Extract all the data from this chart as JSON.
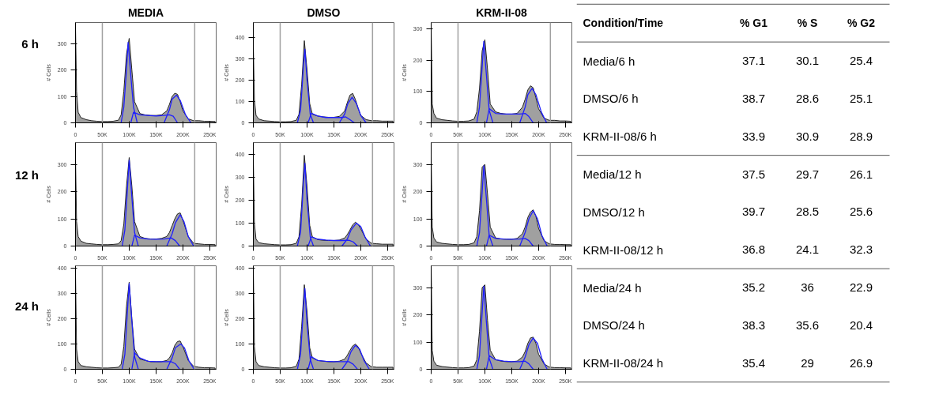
{
  "chart_data": [
    {
      "type": "area",
      "title": "MEDIA",
      "ylabel": "# Cells",
      "annotations": [
        "6 h"
      ],
      "xlim": [
        0,
        262000
      ],
      "ylim": [
        0,
        380
      ],
      "xticks": [
        0,
        {
          "value": 50000,
          "label": "50K"
        },
        {
          "value": 100000,
          "label": "100K"
        },
        {
          "value": 150000,
          "label": "150K"
        },
        {
          "value": 200000,
          "label": "200K"
        },
        {
          "value": 250000,
          "label": "250K"
        }
      ],
      "yticks": [
        0,
        100,
        200,
        300
      ],
      "x": [
        0,
        2000,
        5000,
        10000,
        20000,
        30000,
        40000,
        50000,
        60000,
        70000,
        80000,
        85000,
        90000,
        95000,
        100000,
        105000,
        110000,
        120000,
        130000,
        140000,
        150000,
        160000,
        170000,
        175000,
        180000,
        185000,
        190000,
        195000,
        200000,
        210000,
        220000,
        230000,
        240000,
        250000,
        260000
      ],
      "ref_lines": [
        {
          "axis": "x",
          "value": 50000,
          "color": "#a0a0a0"
        },
        {
          "axis": "x",
          "value": 222000,
          "color": "#a0a0a0"
        }
      ],
      "series": [
        {
          "color": "#a0a0a0",
          "values": [
            370,
            120,
            40,
            20,
            12,
            8,
            6,
            5,
            5,
            6,
            10,
            30,
            120,
            260,
            320,
            200,
            80,
            35,
            30,
            28,
            28,
            30,
            45,
            70,
            100,
            112,
            108,
            80,
            45,
            15,
            8,
            8,
            6,
            6,
            5
          ]
        },
        {
          "type": "line",
          "color": "#1f1fff",
          "x": [
            85000,
            90000,
            95000,
            98000,
            103000,
            108000,
            115000
          ],
          "values": [
            0,
            60,
            200,
            305,
            180,
            60,
            0
          ]
        },
        {
          "type": "line",
          "color": "#1f1fff",
          "x": [
            103000,
            108000,
            120000,
            135000,
            150000,
            165000,
            175000,
            182000,
            190000
          ],
          "values": [
            0,
            40,
            30,
            28,
            26,
            28,
            30,
            25,
            0
          ]
        },
        {
          "type": "line",
          "color": "#1f1fff",
          "x": [
            165000,
            175000,
            180000,
            188000,
            195000,
            205000,
            215000
          ],
          "values": [
            0,
            50,
            90,
            105,
            85,
            30,
            0
          ]
        }
      ]
    },
    {
      "type": "area",
      "title": "DMSO",
      "ylabel": "# Cells",
      "xlim": [
        0,
        262000
      ],
      "ylim": [
        0,
        470
      ],
      "xticks": [
        0,
        {
          "value": 50000,
          "label": "50K"
        },
        {
          "value": 100000,
          "label": "100K"
        },
        {
          "value": 150000,
          "label": "150K"
        },
        {
          "value": 200000,
          "label": "200K"
        },
        {
          "value": 250000,
          "label": "250K"
        }
      ],
      "yticks": [
        0,
        100,
        200,
        300,
        400
      ],
      "x": [
        0,
        2000,
        5000,
        10000,
        20000,
        30000,
        40000,
        50000,
        60000,
        70000,
        80000,
        85000,
        90000,
        95000,
        100000,
        105000,
        110000,
        120000,
        130000,
        140000,
        150000,
        160000,
        170000,
        175000,
        180000,
        185000,
        190000,
        195000,
        200000,
        210000,
        220000,
        230000,
        240000,
        250000,
        260000
      ],
      "ref_lines": [
        {
          "axis": "x",
          "value": 50000,
          "color": "#a0a0a0"
        },
        {
          "axis": "x",
          "value": 222000,
          "color": "#a0a0a0"
        }
      ],
      "series": [
        {
          "color": "#a0a0a0",
          "values": [
            360,
            110,
            35,
            18,
            10,
            8,
            6,
            5,
            5,
            6,
            12,
            40,
            180,
            385,
            250,
            90,
            40,
            32,
            28,
            26,
            26,
            30,
            55,
            95,
            130,
            138,
            110,
            70,
            35,
            15,
            10,
            10,
            8,
            8,
            8
          ]
        },
        {
          "type": "line",
          "color": "#1f1fff",
          "x": [
            82000,
            88000,
            93000,
            96000,
            100000,
            106000,
            112000
          ],
          "values": [
            0,
            60,
            250,
            345,
            200,
            40,
            0
          ]
        },
        {
          "type": "line",
          "color": "#1f1fff",
          "x": [
            102000,
            108000,
            120000,
            135000,
            150000,
            165000,
            172000,
            180000,
            188000
          ],
          "values": [
            0,
            45,
            32,
            25,
            25,
            25,
            28,
            15,
            0
          ]
        },
        {
          "type": "line",
          "color": "#1f1fff",
          "x": [
            160000,
            170000,
            176000,
            184000,
            192000,
            200000,
            210000
          ],
          "values": [
            0,
            40,
            90,
            120,
            90,
            35,
            0
          ]
        }
      ]
    },
    {
      "type": "area",
      "title": "KRM-II-08",
      "ylabel": "# Cells",
      "xlim": [
        0,
        262000
      ],
      "ylim": [
        0,
        320
      ],
      "xticks": [
        0,
        {
          "value": 50000,
          "label": "50K"
        },
        {
          "value": 100000,
          "label": "100K"
        },
        {
          "value": 150000,
          "label": "150K"
        },
        {
          "value": 200000,
          "label": "200K"
        },
        {
          "value": 250000,
          "label": "250K"
        }
      ],
      "yticks": [
        0,
        100,
        200,
        300
      ],
      "x": [
        0,
        2000,
        5000,
        10000,
        20000,
        30000,
        40000,
        50000,
        60000,
        70000,
        80000,
        85000,
        90000,
        95000,
        100000,
        105000,
        110000,
        120000,
        130000,
        140000,
        150000,
        160000,
        170000,
        175000,
        180000,
        185000,
        190000,
        195000,
        200000,
        210000,
        220000,
        230000,
        240000,
        250000,
        260000
      ],
      "ref_lines": [
        {
          "axis": "x",
          "value": 50000,
          "color": "#a0a0a0"
        },
        {
          "axis": "x",
          "value": 222000,
          "color": "#a0a0a0"
        }
      ],
      "series": [
        {
          "color": "#a0a0a0",
          "values": [
            300,
            60,
            30,
            15,
            10,
            8,
            6,
            5,
            5,
            6,
            12,
            35,
            110,
            230,
            265,
            170,
            60,
            35,
            30,
            28,
            28,
            30,
            50,
            75,
            105,
            118,
            112,
            80,
            45,
            15,
            8,
            8,
            6,
            6,
            5
          ]
        },
        {
          "type": "line",
          "color": "#1f1fff",
          "x": [
            85000,
            90000,
            95000,
            98000,
            103000,
            108000,
            115000
          ],
          "values": [
            0,
            50,
            180,
            260,
            150,
            40,
            0
          ]
        },
        {
          "type": "line",
          "color": "#1f1fff",
          "x": [
            103000,
            108000,
            120000,
            135000,
            150000,
            165000,
            175000,
            182000,
            190000
          ],
          "values": [
            0,
            45,
            30,
            28,
            28,
            28,
            30,
            20,
            0
          ]
        },
        {
          "type": "line",
          "color": "#1f1fff",
          "x": [
            165000,
            175000,
            180000,
            188000,
            195000,
            205000,
            215000
          ],
          "values": [
            0,
            50,
            90,
            110,
            90,
            35,
            0
          ]
        }
      ]
    },
    {
      "type": "area",
      "ylabel": "# Cells",
      "annotations": [
        "12 h"
      ],
      "xlim": [
        0,
        262000
      ],
      "ylim": [
        0,
        380
      ],
      "xticks": [
        0,
        {
          "value": 50000,
          "label": "50K"
        },
        {
          "value": 100000,
          "label": "100K"
        },
        {
          "value": 150000,
          "label": "150K"
        },
        {
          "value": 200000,
          "label": "200K"
        },
        {
          "value": 250000,
          "label": "250K"
        }
      ],
      "yticks": [
        0,
        100,
        200,
        300
      ],
      "x": [
        0,
        2000,
        5000,
        10000,
        20000,
        30000,
        40000,
        50000,
        60000,
        70000,
        80000,
        85000,
        90000,
        95000,
        100000,
        105000,
        110000,
        120000,
        130000,
        140000,
        150000,
        160000,
        170000,
        175000,
        180000,
        185000,
        190000,
        195000,
        200000,
        210000,
        220000,
        230000,
        240000,
        250000,
        260000
      ],
      "ref_lines": [
        {
          "axis": "x",
          "value": 50000,
          "color": "#a0a0a0"
        },
        {
          "axis": "x",
          "value": 222000,
          "color": "#a0a0a0"
        }
      ],
      "series": [
        {
          "color": "#a0a0a0",
          "values": [
            330,
            90,
            35,
            18,
            10,
            8,
            6,
            5,
            5,
            6,
            8,
            20,
            80,
            220,
            325,
            220,
            90,
            35,
            28,
            26,
            26,
            28,
            35,
            50,
            75,
            100,
            118,
            122,
            95,
            35,
            10,
            8,
            6,
            6,
            5
          ]
        },
        {
          "type": "line",
          "color": "#1f1fff",
          "x": [
            87000,
            92000,
            97000,
            100000,
            105000,
            110000,
            117000
          ],
          "values": [
            0,
            60,
            220,
            315,
            180,
            50,
            0
          ]
        },
        {
          "type": "line",
          "color": "#1f1fff",
          "x": [
            105000,
            110000,
            120000,
            135000,
            150000,
            165000,
            178000,
            186000,
            194000
          ],
          "values": [
            0,
            40,
            30,
            26,
            25,
            26,
            30,
            20,
            0
          ]
        },
        {
          "type": "line",
          "color": "#1f1fff",
          "x": [
            170000,
            180000,
            186000,
            195000,
            202000,
            210000,
            220000
          ],
          "values": [
            0,
            45,
            85,
            115,
            90,
            35,
            0
          ]
        }
      ]
    },
    {
      "type": "area",
      "ylabel": "# Cells",
      "xlim": [
        0,
        262000
      ],
      "ylim": [
        0,
        450
      ],
      "xticks": [
        0,
        {
          "value": 50000,
          "label": "50K"
        },
        {
          "value": 100000,
          "label": "100K"
        },
        {
          "value": 150000,
          "label": "150K"
        },
        {
          "value": 200000,
          "label": "200K"
        },
        {
          "value": 250000,
          "label": "250K"
        }
      ],
      "yticks": [
        0,
        100,
        200,
        300,
        400
      ],
      "x": [
        0,
        2000,
        5000,
        10000,
        20000,
        30000,
        40000,
        50000,
        60000,
        70000,
        80000,
        85000,
        90000,
        95000,
        100000,
        105000,
        110000,
        120000,
        130000,
        140000,
        150000,
        160000,
        170000,
        175000,
        180000,
        185000,
        190000,
        195000,
        200000,
        210000,
        220000,
        230000,
        240000,
        250000,
        260000
      ],
      "ref_lines": [
        {
          "axis": "x",
          "value": 50000,
          "color": "#a0a0a0"
        },
        {
          "axis": "x",
          "value": 222000,
          "color": "#a0a0a0"
        }
      ],
      "series": [
        {
          "color": "#a0a0a0",
          "values": [
            380,
            100,
            30,
            15,
            10,
            8,
            6,
            5,
            5,
            6,
            12,
            40,
            180,
            395,
            260,
            90,
            40,
            28,
            25,
            24,
            24,
            26,
            35,
            50,
            70,
            92,
            104,
            95,
            75,
            30,
            12,
            10,
            8,
            8,
            8
          ]
        },
        {
          "type": "line",
          "color": "#1f1fff",
          "x": [
            82000,
            88000,
            93000,
            96000,
            100000,
            106000,
            112000
          ],
          "values": [
            0,
            60,
            260,
            360,
            200,
            40,
            0
          ]
        },
        {
          "type": "line",
          "color": "#1f1fff",
          "x": [
            102000,
            108000,
            120000,
            135000,
            150000,
            165000,
            178000,
            186000,
            194000
          ],
          "values": [
            0,
            40,
            30,
            26,
            24,
            24,
            25,
            18,
            0
          ]
        },
        {
          "type": "line",
          "color": "#1f1fff",
          "x": [
            165000,
            175000,
            182000,
            192000,
            200000,
            208000,
            218000
          ],
          "values": [
            0,
            30,
            70,
            100,
            85,
            40,
            0
          ]
        }
      ]
    },
    {
      "type": "area",
      "ylabel": "# Cells",
      "xlim": [
        0,
        262000
      ],
      "ylim": [
        0,
        380
      ],
      "xticks": [
        0,
        {
          "value": 50000,
          "label": "50K"
        },
        {
          "value": 100000,
          "label": "100K"
        },
        {
          "value": 150000,
          "label": "150K"
        },
        {
          "value": 200000,
          "label": "200K"
        },
        {
          "value": 250000,
          "label": "250K"
        }
      ],
      "yticks": [
        0,
        100,
        200,
        300
      ],
      "x": [
        0,
        2000,
        5000,
        10000,
        20000,
        30000,
        40000,
        50000,
        60000,
        70000,
        80000,
        85000,
        90000,
        95000,
        100000,
        105000,
        110000,
        120000,
        130000,
        140000,
        150000,
        160000,
        170000,
        175000,
        180000,
        185000,
        190000,
        195000,
        200000,
        210000,
        220000,
        230000,
        240000,
        250000,
        260000
      ],
      "ref_lines": [
        {
          "axis": "x",
          "value": 50000,
          "color": "#a0a0a0"
        },
        {
          "axis": "x",
          "value": 222000,
          "color": "#a0a0a0"
        }
      ],
      "series": [
        {
          "color": "#a0a0a0",
          "values": [
            330,
            70,
            30,
            15,
            10,
            8,
            6,
            5,
            5,
            6,
            12,
            35,
            130,
            290,
            300,
            190,
            70,
            30,
            26,
            25,
            25,
            28,
            45,
            70,
            105,
            125,
            133,
            110,
            65,
            20,
            8,
            6,
            6,
            5,
            5
          ]
        },
        {
          "type": "line",
          "color": "#1f1fff",
          "x": [
            85000,
            90000,
            95000,
            98000,
            103000,
            108000,
            115000
          ],
          "values": [
            0,
            50,
            200,
            295,
            170,
            40,
            0
          ]
        },
        {
          "type": "line",
          "color": "#1f1fff",
          "x": [
            103000,
            108000,
            120000,
            135000,
            150000,
            165000,
            175000,
            182000,
            190000
          ],
          "values": [
            0,
            40,
            28,
            26,
            25,
            26,
            28,
            20,
            0
          ]
        },
        {
          "type": "line",
          "color": "#1f1fff",
          "x": [
            165000,
            175000,
            182000,
            190000,
            198000,
            206000,
            216000
          ],
          "values": [
            0,
            50,
            100,
            130,
            100,
            40,
            0
          ]
        }
      ]
    },
    {
      "type": "area",
      "ylabel": "# Cells",
      "annotations": [
        "24 h"
      ],
      "xlim": [
        0,
        262000
      ],
      "ylim": [
        0,
        410
      ],
      "xticks": [
        0,
        {
          "value": 50000,
          "label": "50K"
        },
        {
          "value": 100000,
          "label": "100K"
        },
        {
          "value": 150000,
          "label": "150K"
        },
        {
          "value": 200000,
          "label": "200K"
        },
        {
          "value": 250000,
          "label": "250K"
        }
      ],
      "yticks": [
        0,
        100,
        200,
        300,
        400
      ],
      "x": [
        0,
        2000,
        5000,
        10000,
        20000,
        30000,
        40000,
        50000,
        60000,
        70000,
        80000,
        85000,
        90000,
        95000,
        100000,
        105000,
        110000,
        120000,
        130000,
        140000,
        150000,
        160000,
        170000,
        175000,
        180000,
        185000,
        190000,
        195000,
        200000,
        210000,
        220000,
        230000,
        240000,
        250000,
        260000
      ],
      "ref_lines": [
        {
          "axis": "x",
          "value": 50000,
          "color": "#a0a0a0"
        },
        {
          "axis": "x",
          "value": 222000,
          "color": "#a0a0a0"
        }
      ],
      "series": [
        {
          "color": "#a0a0a0",
          "values": [
            390,
            80,
            30,
            15,
            10,
            8,
            6,
            5,
            5,
            6,
            8,
            20,
            90,
            250,
            345,
            200,
            80,
            40,
            35,
            30,
            30,
            30,
            35,
            45,
            65,
            95,
            110,
            112,
            90,
            35,
            12,
            8,
            6,
            6,
            5
          ]
        },
        {
          "type": "line",
          "color": "#1f1fff",
          "x": [
            87000,
            92000,
            97000,
            100000,
            105000,
            110000,
            117000
          ],
          "values": [
            0,
            60,
            240,
            340,
            190,
            50,
            0
          ]
        },
        {
          "type": "line",
          "color": "#1f1fff",
          "x": [
            105000,
            110000,
            120000,
            135000,
            150000,
            165000,
            178000,
            186000,
            194000
          ],
          "values": [
            0,
            65,
            45,
            32,
            30,
            30,
            30,
            22,
            0
          ]
        },
        {
          "type": "line",
          "color": "#1f1fff",
          "x": [
            170000,
            180000,
            186000,
            196000,
            203000,
            211000,
            221000
          ],
          "values": [
            0,
            45,
            85,
            100,
            85,
            35,
            0
          ]
        }
      ]
    },
    {
      "type": "area",
      "ylabel": "# Cells",
      "xlim": [
        0,
        262000
      ],
      "ylim": [
        0,
        410
      ],
      "xticks": [
        0,
        {
          "value": 50000,
          "label": "50K"
        },
        {
          "value": 100000,
          "label": "100K"
        },
        {
          "value": 150000,
          "label": "150K"
        },
        {
          "value": 200000,
          "label": "200K"
        },
        {
          "value": 250000,
          "label": "250K"
        }
      ],
      "yticks": [
        0,
        100,
        200,
        300,
        400
      ],
      "x": [
        0,
        2000,
        5000,
        10000,
        20000,
        30000,
        40000,
        50000,
        60000,
        70000,
        80000,
        85000,
        90000,
        95000,
        100000,
        105000,
        110000,
        120000,
        130000,
        140000,
        150000,
        160000,
        170000,
        175000,
        180000,
        185000,
        190000,
        195000,
        200000,
        210000,
        220000,
        230000,
        240000,
        250000,
        260000
      ],
      "ref_lines": [
        {
          "axis": "x",
          "value": 50000,
          "color": "#a0a0a0"
        },
        {
          "axis": "x",
          "value": 222000,
          "color": "#a0a0a0"
        }
      ],
      "series": [
        {
          "color": "#a0a0a0",
          "values": [
            400,
            90,
            30,
            15,
            10,
            8,
            6,
            5,
            5,
            6,
            12,
            40,
            170,
            335,
            230,
            85,
            45,
            35,
            32,
            30,
            30,
            32,
            40,
            55,
            75,
            92,
            100,
            90,
            65,
            25,
            10,
            8,
            8,
            8,
            8
          ]
        },
        {
          "type": "line",
          "color": "#1f1fff",
          "x": [
            82000,
            88000,
            93000,
            96000,
            100000,
            106000,
            112000
          ],
          "values": [
            0,
            60,
            230,
            320,
            180,
            40,
            0
          ]
        },
        {
          "type": "line",
          "color": "#1f1fff",
          "x": [
            102000,
            108000,
            120000,
            135000,
            150000,
            165000,
            178000,
            186000,
            194000
          ],
          "values": [
            0,
            50,
            35,
            32,
            30,
            30,
            30,
            20,
            0
          ]
        },
        {
          "type": "line",
          "color": "#1f1fff",
          "x": [
            165000,
            175000,
            182000,
            190000,
            198000,
            206000,
            216000
          ],
          "values": [
            0,
            30,
            70,
            95,
            80,
            35,
            0
          ]
        }
      ]
    },
    {
      "type": "area",
      "ylabel": "# Cells",
      "xlim": [
        0,
        262000
      ],
      "ylim": [
        0,
        380
      ],
      "xticks": [
        0,
        {
          "value": 50000,
          "label": "50K"
        },
        {
          "value": 100000,
          "label": "100K"
        },
        {
          "value": 150000,
          "label": "150K"
        },
        {
          "value": 200000,
          "label": "200K"
        },
        {
          "value": 250000,
          "label": "250K"
        }
      ],
      "yticks": [
        0,
        100,
        200,
        300
      ],
      "x": [
        0,
        2000,
        5000,
        10000,
        20000,
        30000,
        40000,
        50000,
        60000,
        70000,
        80000,
        85000,
        90000,
        95000,
        100000,
        105000,
        110000,
        120000,
        130000,
        140000,
        150000,
        160000,
        170000,
        175000,
        180000,
        185000,
        190000,
        195000,
        200000,
        210000,
        220000,
        230000,
        240000,
        250000,
        260000
      ],
      "ref_lines": [
        {
          "axis": "x",
          "value": 50000,
          "color": "#a0a0a0"
        },
        {
          "axis": "x",
          "value": 222000,
          "color": "#a0a0a0"
        }
      ],
      "series": [
        {
          "color": "#a0a0a0",
          "values": [
            380,
            70,
            30,
            15,
            10,
            8,
            6,
            5,
            5,
            6,
            12,
            35,
            140,
            300,
            310,
            180,
            70,
            35,
            30,
            28,
            28,
            30,
            45,
            65,
            95,
            115,
            118,
            95,
            55,
            20,
            8,
            6,
            6,
            5,
            5
          ]
        },
        {
          "type": "line",
          "color": "#1f1fff",
          "x": [
            85000,
            90000,
            95000,
            98000,
            103000,
            108000,
            115000
          ],
          "values": [
            0,
            50,
            210,
            305,
            170,
            40,
            0
          ]
        },
        {
          "type": "line",
          "color": "#1f1fff",
          "x": [
            103000,
            108000,
            120000,
            135000,
            150000,
            165000,
            175000,
            182000,
            190000
          ],
          "values": [
            0,
            50,
            35,
            30,
            28,
            28,
            30,
            20,
            0
          ]
        },
        {
          "type": "line",
          "color": "#1f1fff",
          "x": [
            165000,
            175000,
            182000,
            190000,
            198000,
            206000,
            216000
          ],
          "values": [
            0,
            45,
            90,
            115,
            95,
            40,
            0
          ]
        }
      ]
    },
    {
      "type": "other",
      "title": "Condition/Time",
      "data_labels": true,
      "categories": [
        "Media/6 h",
        "DMSO/6 h",
        "KRM-II-08/6 h",
        "Media/12 h",
        "DMSO/12 h",
        "KRM-II-08/12 h",
        "Media/24 h",
        "DMSO/24 h",
        "KRM-II-08/24 h"
      ],
      "series": [
        {
          "name": "% G1",
          "values": [
            37.1,
            38.7,
            33.9,
            37.5,
            39.7,
            36.8,
            35.2,
            38.3,
            35.4
          ]
        },
        {
          "name": "% S",
          "values": [
            30.1,
            28.6,
            30.9,
            29.7,
            28.5,
            24.1,
            36,
            35.6,
            29
          ]
        },
        {
          "name": "% G2",
          "values": [
            25.4,
            25.1,
            28.9,
            26.1,
            25.6,
            32.3,
            22.9,
            20.4,
            26.9
          ]
        }
      ]
    }
  ]
}
